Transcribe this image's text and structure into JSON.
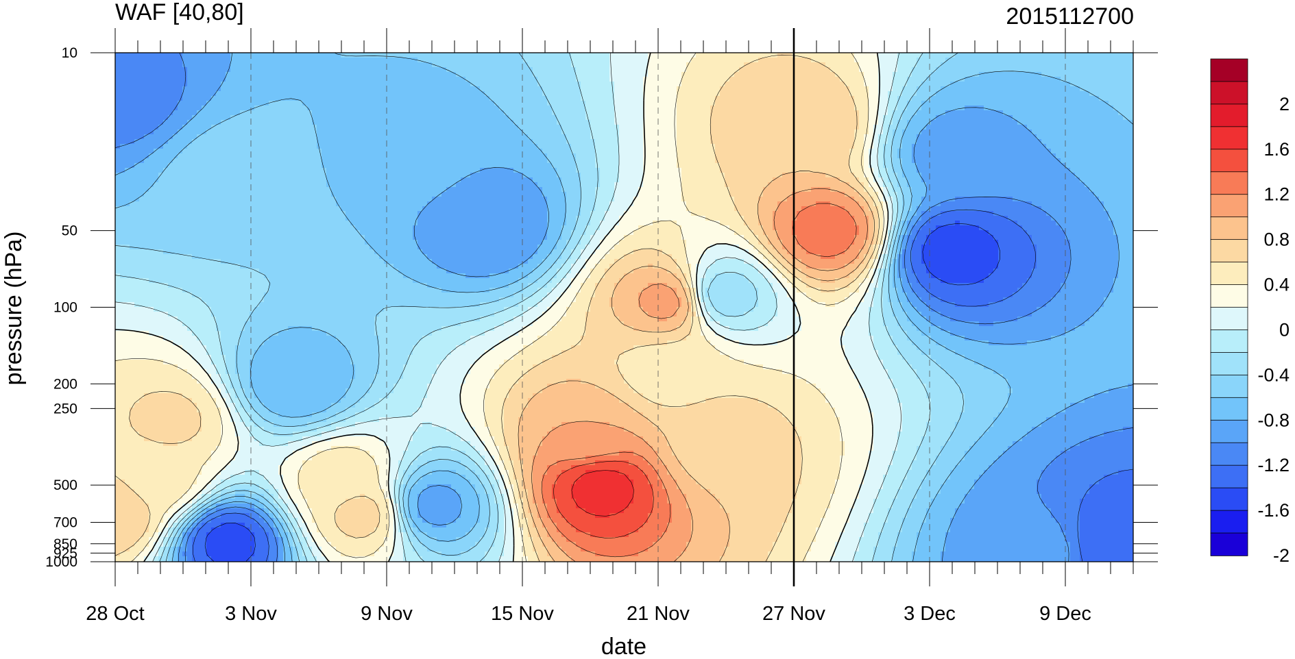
{
  "chart_data": {
    "type": "heatmap",
    "title": "WAF [40,80]",
    "right_title": "2015112700",
    "xlabel": "date",
    "ylabel": "pressure (hPa)",
    "x_tick_labels": [
      "28 Oct",
      "3 Nov",
      "9 Nov",
      "15 Nov",
      "21 Nov",
      "27 Nov",
      "3 Dec",
      "9 Dec"
    ],
    "x_ticks_day": [
      0,
      6,
      12,
      18,
      24,
      30,
      36,
      42
    ],
    "x_range_day": [
      0,
      45
    ],
    "y_scale": "log",
    "y_reversed": true,
    "y_tick_values": [
      10,
      50,
      100,
      200,
      250,
      500,
      700,
      850,
      925,
      1000
    ],
    "y_tick_labels": [
      "10",
      "50",
      "100",
      "200",
      "250",
      "500",
      "700",
      "850",
      "925",
      "1000"
    ],
    "y_range": [
      10,
      1000
    ],
    "marker_line_day": 30,
    "levels": [
      -2.2,
      -2.0,
      -1.8,
      -1.6,
      -1.4,
      -1.2,
      -1.0,
      -0.8,
      -0.6,
      -0.4,
      -0.2,
      0.0,
      0.2,
      0.4,
      0.6,
      0.8,
      1.0,
      1.2,
      1.4,
      1.6,
      1.8,
      2.0,
      2.2
    ],
    "colorbar_colors": [
      "#1a00d8",
      "#1a1ef0",
      "#2a4cf5",
      "#3d6ff5",
      "#4a88f5",
      "#5aa5f8",
      "#72c4fa",
      "#8ad5fa",
      "#a0e2fa",
      "#b8eefa",
      "#def7fb",
      "#fefce6",
      "#fdedbd",
      "#fcd9a3",
      "#fcc38d",
      "#faa273",
      "#f87b57",
      "#f4503e",
      "#f03032",
      "#e31c2c",
      "#cc1129",
      "#a50026"
    ],
    "colorbar_tick_labels": [
      "2",
      "1.6",
      "1.2",
      "0.8",
      "0.4",
      "0",
      "-0.4",
      "-0.8",
      "-1.2",
      "-1.6",
      "-2"
    ],
    "field_features": [
      {
        "day": 0.3,
        "p": 15,
        "value": -1.3
      },
      {
        "day": 5,
        "p": 30,
        "value": -0.7
      },
      {
        "day": 13,
        "p": 25,
        "value": -0.9
      },
      {
        "day": 16.5,
        "p": 48,
        "value": -1.2
      },
      {
        "day": 2.5,
        "p": 280,
        "value": 0.45
      },
      {
        "day": 2.0,
        "p": 480,
        "value": 0.3
      },
      {
        "day": 0,
        "p": 650,
        "value": 0.6
      },
      {
        "day": 5,
        "p": 830,
        "value": -1.7
      },
      {
        "day": 8,
        "p": 200,
        "value": -1.0
      },
      {
        "day": 10,
        "p": 480,
        "value": 0.35
      },
      {
        "day": 11,
        "p": 650,
        "value": 0.5
      },
      {
        "day": 14,
        "p": 600,
        "value": -1.1
      },
      {
        "day": 21.5,
        "p": 500,
        "value": 1.5
      },
      {
        "day": 21,
        "p": 320,
        "value": 0.8
      },
      {
        "day": 24.5,
        "p": 95,
        "value": 0.9
      },
      {
        "day": 24.5,
        "p": 180,
        "value": 0.3
      },
      {
        "day": 26.8,
        "p": 90,
        "value": -0.55
      },
      {
        "day": 26.5,
        "p": 340,
        "value": 0.5
      },
      {
        "day": 31.5,
        "p": 50,
        "value": 1.1
      },
      {
        "day": 30.5,
        "p": 20,
        "value": 0.6
      },
      {
        "day": 37,
        "p": 60,
        "value": -1.7
      },
      {
        "day": 37,
        "p": 25,
        "value": -1.1
      },
      {
        "day": 44,
        "p": 850,
        "value": -1.6
      },
      {
        "day": 41,
        "p": 900,
        "value": -1.1
      }
    ]
  }
}
